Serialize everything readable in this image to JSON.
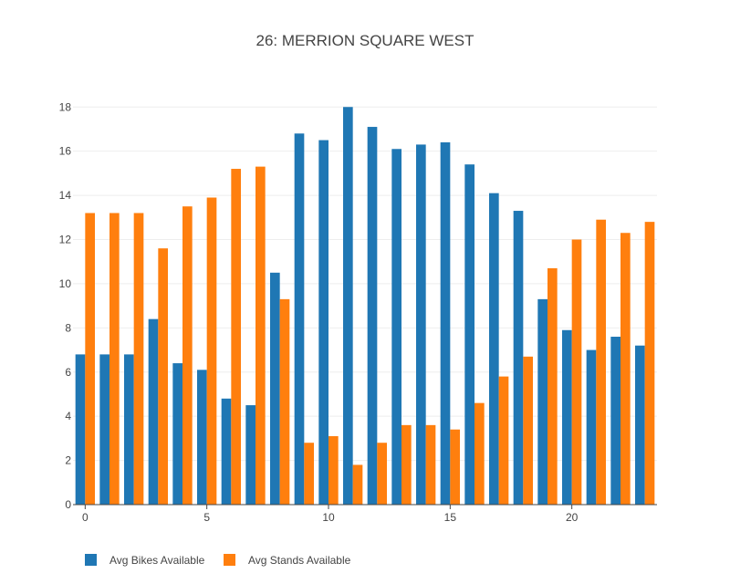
{
  "chart_data": {
    "type": "bar",
    "title": "26: MERRION SQUARE WEST",
    "xlabel": "",
    "ylabel": "",
    "x": [
      0,
      1,
      2,
      3,
      4,
      5,
      6,
      7,
      8,
      9,
      10,
      11,
      12,
      13,
      14,
      15,
      16,
      17,
      18,
      19,
      20,
      21,
      22,
      23
    ],
    "x_ticks": [
      0,
      5,
      10,
      15,
      20
    ],
    "xlim": [
      -0.5,
      23.5
    ],
    "ylim": [
      0,
      18.3
    ],
    "y_ticks": [
      0,
      2,
      4,
      6,
      8,
      10,
      12,
      14,
      16,
      18
    ],
    "grid": true,
    "legend_position": "bottom-left",
    "series": [
      {
        "name": "Avg Bikes Available",
        "color": "#1f77b4",
        "values": [
          6.8,
          6.8,
          6.8,
          8.4,
          6.4,
          6.1,
          4.8,
          4.5,
          10.5,
          16.8,
          16.5,
          18.0,
          17.1,
          16.1,
          16.3,
          16.4,
          15.4,
          14.1,
          13.3,
          9.3,
          7.9,
          7.0,
          7.6,
          7.2
        ]
      },
      {
        "name": "Avg Stands Available",
        "color": "#ff7f0e",
        "values": [
          13.2,
          13.2,
          13.2,
          11.6,
          13.5,
          13.9,
          15.2,
          15.3,
          9.3,
          2.8,
          3.1,
          1.8,
          2.8,
          3.6,
          3.6,
          3.4,
          4.6,
          5.8,
          6.7,
          10.7,
          12.0,
          12.9,
          12.3,
          12.8
        ]
      }
    ]
  }
}
